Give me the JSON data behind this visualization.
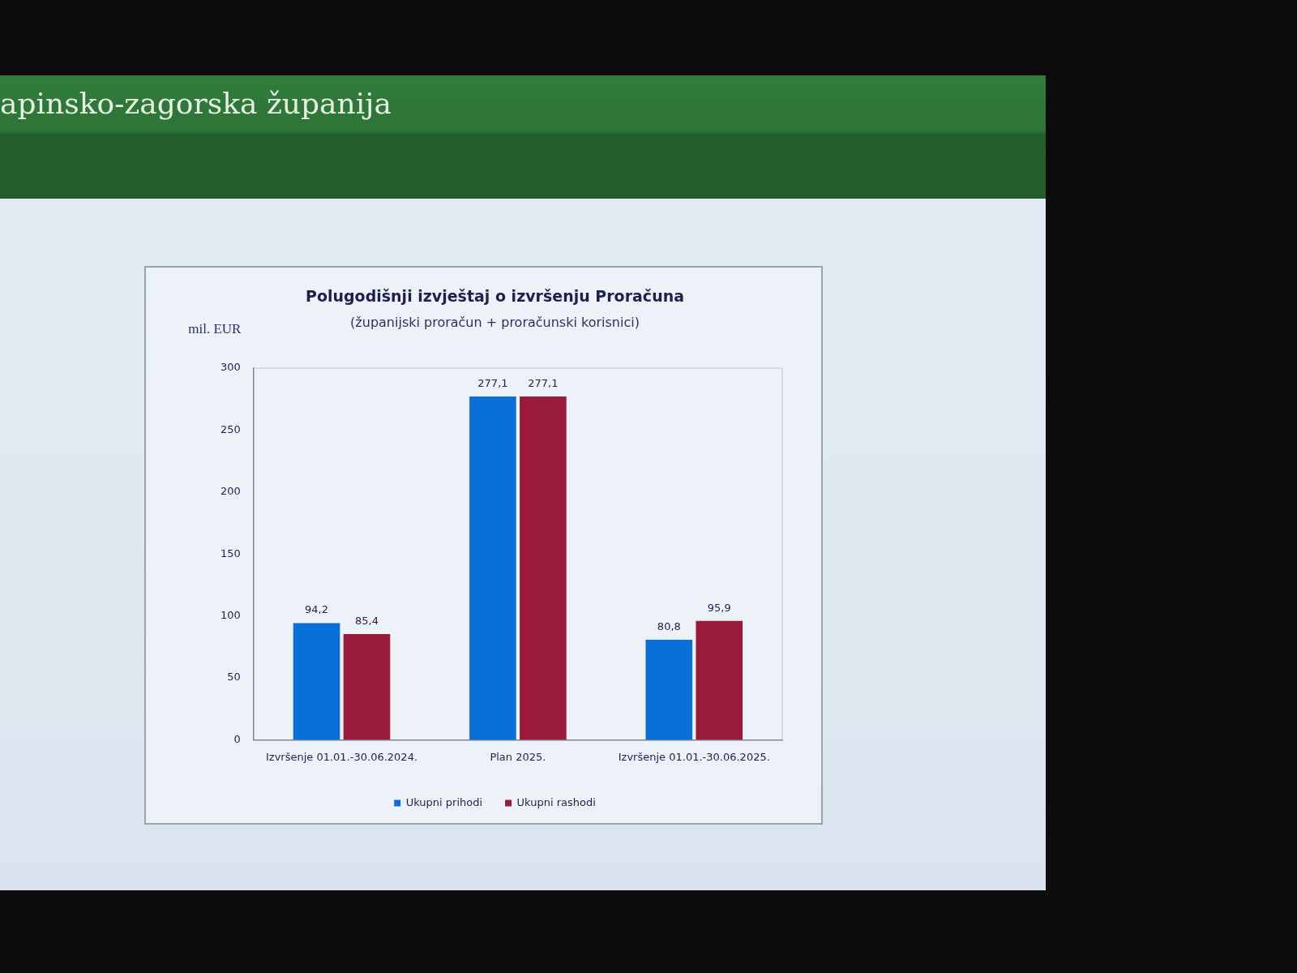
{
  "chart_data": {
    "type": "bar",
    "title": "Polugodišnji izvještaj o izvršenju Proračuna",
    "subtitle": "(županijski proračun + proračunski korisnici)",
    "ylabel": "mil. EUR",
    "categories": [
      "Izvršenje 01.01.-30.06.2024.",
      "Plan 2025.",
      "Izvršenje 01.01.-30.06.2025."
    ],
    "series": [
      {
        "name": "Ukupni prihodi",
        "color": "#0a6fd8",
        "values": [
          94.2,
          277.1,
          80.8
        ],
        "value_labels": [
          "94,2",
          "277,1",
          "80,8"
        ]
      },
      {
        "name": "Ukupni rashodi",
        "color": "#9a1a3c",
        "values": [
          85.4,
          277.1,
          95.9
        ],
        "value_labels": [
          "85,4",
          "277,1",
          "95,9"
        ]
      }
    ],
    "ylim": [
      0,
      300
    ],
    "yticks": [
      0,
      50,
      100,
      150,
      200,
      250,
      300
    ],
    "legend": "bottom",
    "annotations": [
      "apinsko-zagorska županija"
    ]
  }
}
